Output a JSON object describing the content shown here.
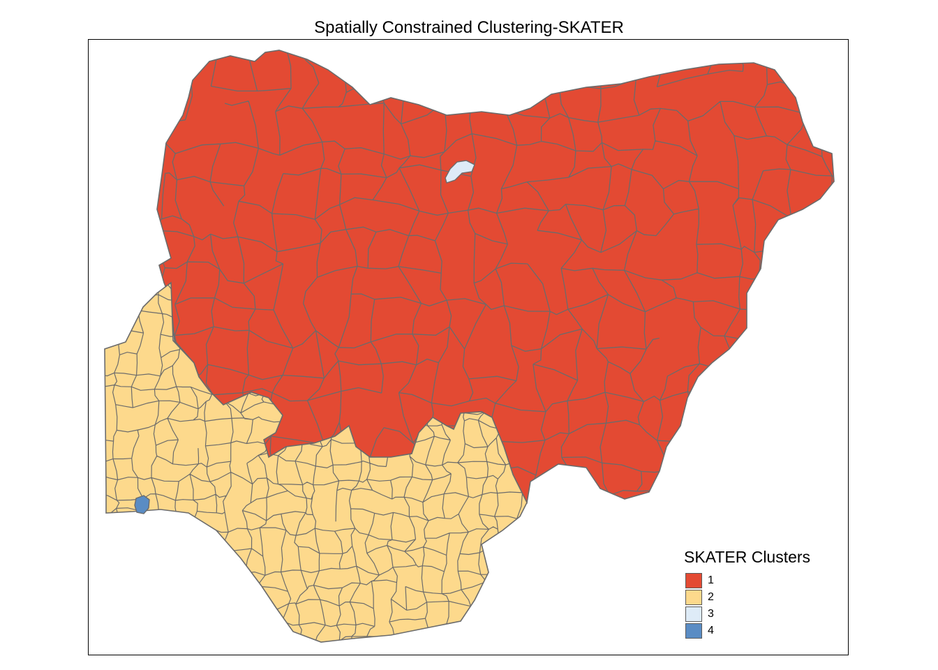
{
  "title": "Spatially Constrained Clustering-SKATER",
  "legend": {
    "title": "SKATER Clusters",
    "items": [
      {
        "label": "1",
        "color": "#e34a33"
      },
      {
        "label": "2",
        "color": "#fdd98c"
      },
      {
        "label": "3",
        "color": "#deebf7"
      },
      {
        "label": "4",
        "color": "#5a8cc4"
      }
    ]
  },
  "boundary_color": "#6b6b6b"
}
